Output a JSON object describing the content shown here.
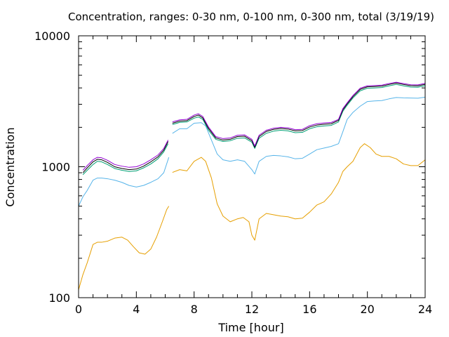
{
  "chart_data": {
    "type": "line",
    "title": "Concentration, ranges: 0-30 nm, 0-100 nm, 0-300 nm, total (3/19/19)",
    "xlabel": "Time [hour]",
    "ylabel": "Concentration",
    "xlim": [
      0,
      24
    ],
    "ylim": [
      100,
      10000
    ],
    "yscale": "log",
    "grid": false,
    "legend": "none",
    "x_ticks": [
      0,
      4,
      8,
      12,
      16,
      20,
      24
    ],
    "x_tick_labels": [
      "0",
      "4",
      "8",
      "12",
      "16",
      "20",
      "24"
    ],
    "y_ticks": [
      100,
      1000,
      10000
    ],
    "y_tick_labels": [
      "100",
      "1000",
      "10000"
    ],
    "series": [
      {
        "color": "#e69f00",
        "x": [
          0,
          0.3,
          0.6,
          1.0,
          1.3,
          1.6,
          2.0,
          2.5,
          3.0,
          3.4,
          3.8,
          4.2,
          4.6,
          5.0,
          5.4,
          5.8,
          6.1,
          6.25,
          6.5,
          7.0,
          7.5,
          8.0,
          8.5,
          8.8,
          9.2,
          9.6,
          10.0,
          10.5,
          11.0,
          11.4,
          11.8,
          12.0,
          12.2,
          12.5,
          13.0,
          13.5,
          14.0,
          14.5,
          15.0,
          15.5,
          16.0,
          16.5,
          17.0,
          17.5,
          18.0,
          18.3,
          18.6,
          19.0,
          19.5,
          19.8,
          20.2,
          20.6,
          21.0,
          21.5,
          22.0,
          22.5,
          23.0,
          23.5,
          24.0
        ],
        "values": [
          115,
          150,
          185,
          255,
          265,
          265,
          270,
          285,
          290,
          275,
          245,
          220,
          215,
          235,
          290,
          380,
          470,
          500,
          905,
          950,
          930,
          1100,
          1180,
          1100,
          820,
          520,
          420,
          380,
          400,
          410,
          380,
          300,
          275,
          400,
          440,
          430,
          420,
          415,
          400,
          405,
          450,
          510,
          540,
          620,
          760,
          920,
          1000,
          1100,
          1400,
          1500,
          1400,
          1250,
          1200,
          1200,
          1150,
          1050,
          1020,
          1020,
          1130
        ]
      },
      {
        "color": "#56b4e9",
        "x": [
          0,
          0.3,
          0.6,
          1.0,
          1.3,
          1.6,
          2.0,
          2.5,
          3.0,
          3.5,
          4.0,
          4.5,
          5.0,
          5.5,
          5.9,
          6.25,
          6.5,
          7.0,
          7.5,
          8.0,
          8.5,
          8.8,
          9.2,
          9.6,
          10.0,
          10.5,
          11.0,
          11.5,
          12.0,
          12.2,
          12.5,
          13.0,
          13.5,
          14.0,
          14.5,
          15.0,
          15.5,
          16.0,
          16.5,
          17.0,
          17.5,
          18.0,
          18.3,
          18.6,
          19.0,
          19.5,
          20.0,
          20.5,
          21.0,
          21.5,
          22.0,
          22.5,
          23.0,
          23.5,
          24.0
        ],
        "values": [
          500,
          590,
          660,
          790,
          820,
          820,
          810,
          790,
          760,
          720,
          700,
          720,
          760,
          810,
          900,
          1180,
          1800,
          1950,
          1950,
          2150,
          2170,
          2050,
          1600,
          1250,
          1130,
          1100,
          1130,
          1100,
          950,
          880,
          1100,
          1200,
          1220,
          1210,
          1190,
          1150,
          1160,
          1250,
          1350,
          1390,
          1430,
          1500,
          1850,
          2300,
          2600,
          2900,
          3150,
          3180,
          3200,
          3300,
          3380,
          3360,
          3350,
          3340,
          3400
        ]
      },
      {
        "color": "#009e73",
        "x": [
          0.3,
          0.6,
          1.0,
          1.3,
          1.6,
          2.0,
          2.5,
          3.0,
          3.5,
          4.0,
          4.5,
          5.0,
          5.5,
          5.9,
          6.2,
          6.5,
          7.0,
          7.5,
          8.0,
          8.3,
          8.6,
          9.0,
          9.5,
          10.0,
          10.5,
          11.0,
          11.5,
          12.0,
          12.2,
          12.5,
          13.0,
          13.5,
          14.0,
          14.5,
          15.0,
          15.5,
          16.0,
          16.5,
          17.0,
          17.5,
          18.0,
          18.3,
          18.6,
          19.0,
          19.5,
          20.0,
          20.5,
          21.0,
          21.5,
          22.0,
          22.5,
          23.0,
          23.5,
          24.0
        ],
        "values": [
          870,
          940,
          1040,
          1100,
          1090,
          1040,
          970,
          940,
          920,
          930,
          980,
          1050,
          1150,
          1300,
          1500,
          2100,
          2180,
          2200,
          2350,
          2400,
          2300,
          1900,
          1620,
          1560,
          1580,
          1650,
          1660,
          1540,
          1380,
          1650,
          1800,
          1870,
          1900,
          1880,
          1820,
          1830,
          1950,
          2020,
          2050,
          2070,
          2200,
          2650,
          2950,
          3350,
          3800,
          3980,
          4000,
          4030,
          4150,
          4250,
          4150,
          4060,
          4050,
          4160
        ]
      },
      {
        "color": "#000000",
        "x": [
          0.3,
          0.6,
          1.0,
          1.3,
          1.6,
          2.0,
          2.5,
          3.0,
          3.5,
          4.0,
          4.5,
          5.0,
          5.5,
          5.9,
          6.2,
          6.5,
          7.0,
          7.5,
          8.0,
          8.3,
          8.6,
          9.0,
          9.5,
          10.0,
          10.5,
          11.0,
          11.5,
          12.0,
          12.2,
          12.5,
          13.0,
          13.5,
          14.0,
          14.5,
          15.0,
          15.5,
          16.0,
          16.5,
          17.0,
          17.5,
          18.0,
          18.3,
          18.6,
          19.0,
          19.5,
          20.0,
          20.5,
          21.0,
          21.5,
          22.0,
          22.5,
          23.0,
          23.5,
          24.0
        ],
        "values": [
          900,
          980,
          1090,
          1140,
          1130,
          1080,
          1000,
          970,
          950,
          960,
          1010,
          1090,
          1190,
          1340,
          1560,
          2150,
          2230,
          2250,
          2420,
          2480,
          2360,
          1960,
          1660,
          1600,
          1620,
          1700,
          1710,
          1580,
          1410,
          1700,
          1860,
          1930,
          1960,
          1940,
          1880,
          1890,
          2010,
          2080,
          2110,
          2130,
          2260,
          2720,
          3020,
          3430,
          3900,
          4080,
          4100,
          4130,
          4250,
          4350,
          4250,
          4160,
          4150,
          4260
        ]
      },
      {
        "color": "#9400d3",
        "x": [
          0.3,
          0.6,
          1.0,
          1.3,
          1.6,
          2.0,
          2.5,
          3.0,
          3.5,
          4.0,
          4.5,
          5.0,
          5.5,
          5.9,
          6.2,
          6.5,
          7.0,
          7.5,
          8.0,
          8.3,
          8.6,
          9.0,
          9.5,
          10.0,
          10.5,
          11.0,
          11.5,
          12.0,
          12.2,
          12.5,
          13.0,
          13.5,
          14.0,
          14.5,
          15.0,
          15.5,
          16.0,
          16.5,
          17.0,
          17.5,
          18.0,
          18.3,
          18.6,
          19.0,
          19.5,
          20.0,
          20.5,
          21.0,
          21.5,
          22.0,
          22.5,
          23.0,
          23.5,
          24.0
        ],
        "values": [
          940,
          1020,
          1130,
          1180,
          1170,
          1120,
          1040,
          1010,
          990,
          1000,
          1050,
          1130,
          1230,
          1380,
          1600,
          2200,
          2280,
          2300,
          2480,
          2540,
          2420,
          2010,
          1700,
          1640,
          1660,
          1740,
          1750,
          1620,
          1440,
          1740,
          1900,
          1970,
          2000,
          1980,
          1920,
          1930,
          2060,
          2130,
          2160,
          2180,
          2300,
          2780,
          3080,
          3500,
          3980,
          4150,
          4170,
          4200,
          4320,
          4420,
          4320,
          4230,
          4220,
          4330
        ]
      }
    ]
  }
}
